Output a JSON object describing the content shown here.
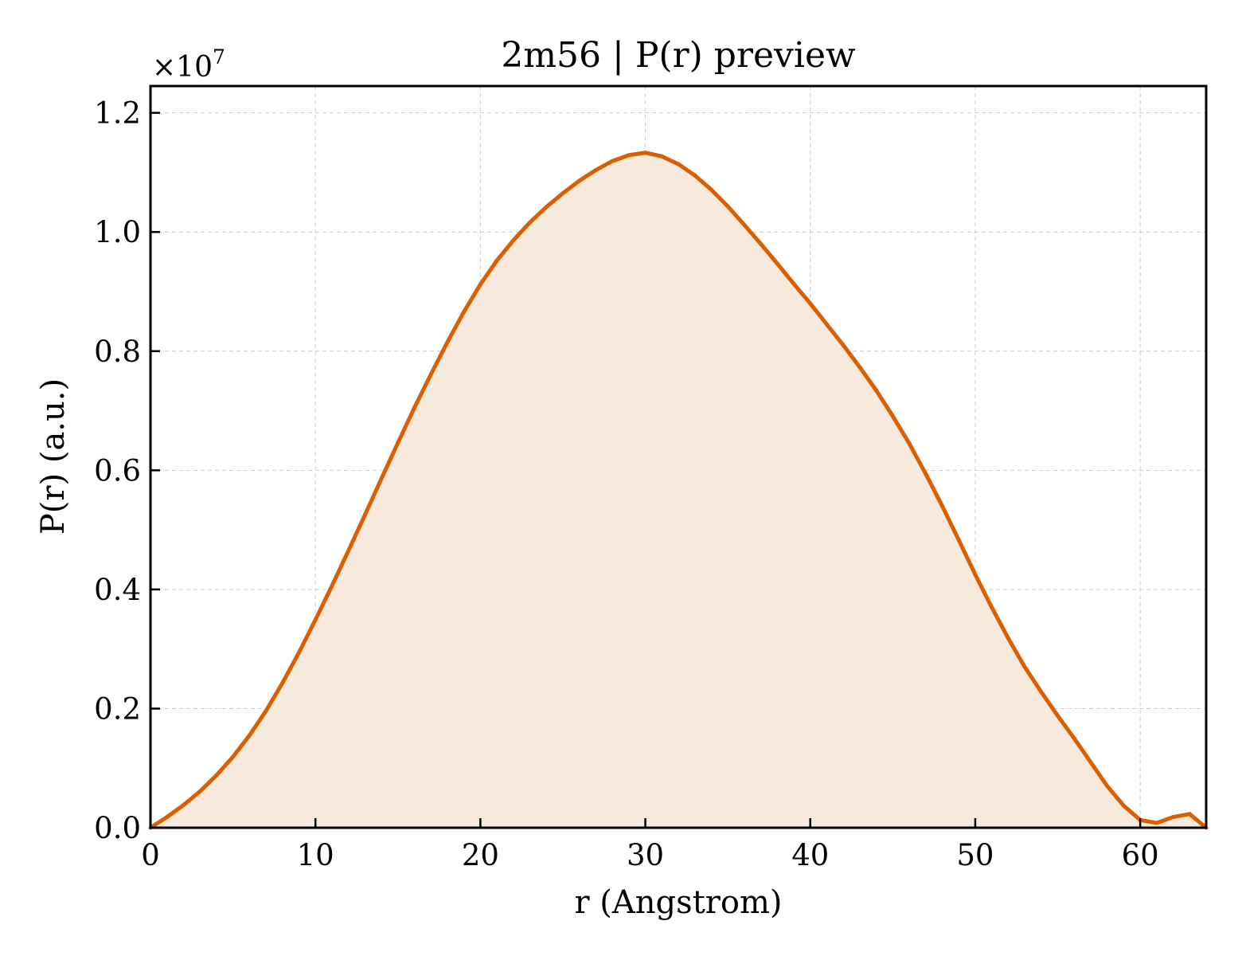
{
  "chart_data": {
    "type": "area",
    "title": "2m56 | P(r) preview",
    "xlabel": "r (Angstrom)",
    "ylabel": "P(r) (a.u.)",
    "y_scale_label": "×10",
    "y_scale_exponent": "7",
    "xlim": [
      0,
      64
    ],
    "ylim": [
      0,
      1.245
    ],
    "x_ticks": [
      0,
      10,
      20,
      30,
      40,
      50,
      60
    ],
    "x_tick_labels": [
      "0",
      "10",
      "20",
      "30",
      "40",
      "50",
      "60"
    ],
    "y_ticks": [
      0,
      0.2,
      0.4,
      0.6,
      0.8,
      1.0,
      1.2
    ],
    "y_tick_labels": [
      "0.0",
      "0.2",
      "0.4",
      "0.6",
      "0.8",
      "1.0",
      "1.2"
    ],
    "grid": true,
    "tick_direction": "in",
    "line_color": "#d95f02",
    "fill_color": "#f8e9dd",
    "series": [
      {
        "x": [
          0,
          1,
          2,
          3,
          4,
          5,
          6,
          7,
          8,
          9,
          10,
          11,
          12,
          13,
          14,
          15,
          16,
          17,
          18,
          19,
          20,
          21,
          22,
          23,
          24,
          25,
          26,
          27,
          28,
          29,
          30,
          31,
          32,
          33,
          34,
          35,
          36,
          37,
          38,
          39,
          40,
          41,
          42,
          43,
          44,
          45,
          46,
          47,
          48,
          49,
          50,
          51,
          52,
          53,
          54,
          55,
          56,
          57,
          58,
          59,
          60,
          61,
          62,
          63,
          64
        ],
        "y": [
          0.0,
          0.018,
          0.038,
          0.061,
          0.088,
          0.119,
          0.155,
          0.196,
          0.243,
          0.294,
          0.349,
          0.406,
          0.465,
          0.525,
          0.586,
          0.646,
          0.705,
          0.761,
          0.815,
          0.866,
          0.912,
          0.952,
          0.986,
          1.016,
          1.042,
          1.065,
          1.086,
          1.104,
          1.119,
          1.129,
          1.133,
          1.127,
          1.114,
          1.095,
          1.071,
          1.043,
          1.012,
          0.98,
          0.947,
          0.913,
          0.88,
          0.845,
          0.81,
          0.773,
          0.734,
          0.691,
          0.645,
          0.594,
          0.54,
          0.483,
          0.425,
          0.37,
          0.318,
          0.27,
          0.228,
          0.188,
          0.15,
          0.11,
          0.07,
          0.037,
          0.013,
          0.008,
          0.018,
          0.023,
          0.0
        ]
      }
    ]
  }
}
